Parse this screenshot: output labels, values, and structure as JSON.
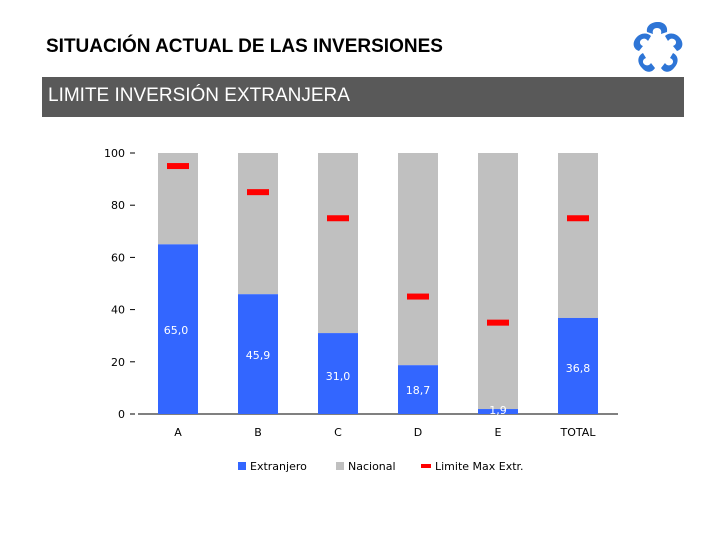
{
  "header": {
    "title": "SITUACIÓN ACTUAL DE LAS INVERSIONES",
    "banner": "LIMITE INVERSIÓN EXTRANJERA"
  },
  "colors": {
    "extranjero": "#3366FF",
    "nacional": "#C0C0C0",
    "limite": "#FF0000",
    "banner": "#595959",
    "logo": "#2E75D6"
  },
  "logo": {
    "icon": "hands-star-logo-icon"
  },
  "chart_data": {
    "type": "bar",
    "stacked": true,
    "title": "",
    "xlabel": "",
    "ylabel": "",
    "ylim": [
      0,
      100
    ],
    "yticks": [
      0,
      20,
      40,
      60,
      80,
      100
    ],
    "categories": [
      "A",
      "B",
      "C",
      "D",
      "E",
      "TOTAL"
    ],
    "series": [
      {
        "name": "Extranjero",
        "values": [
          65.0,
          45.9,
          31.0,
          18.7,
          1.9,
          36.8
        ],
        "labels": [
          "65,0",
          "45,9",
          "31,0",
          "18,7",
          "1,9",
          "36,8"
        ]
      },
      {
        "name": "Nacional",
        "values": [
          35.0,
          54.1,
          69.0,
          81.3,
          98.1,
          63.2
        ]
      }
    ],
    "limit_series": {
      "name": "Limite Max Extr.",
      "values": [
        95,
        85,
        75,
        45,
        35,
        75
      ]
    },
    "legend": [
      "Extranjero",
      "Nacional",
      "Limite Max Extr."
    ],
    "legend_position": "bottom",
    "grid": false
  }
}
